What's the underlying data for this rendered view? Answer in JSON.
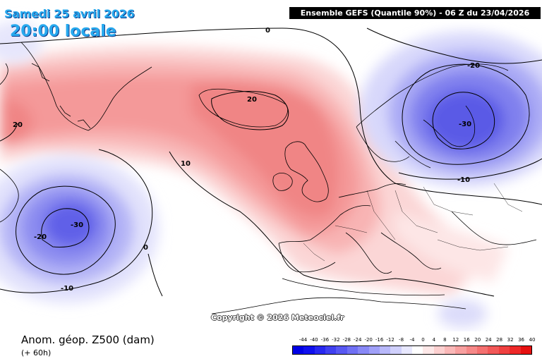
{
  "header": {
    "date": "Samedi 25 avril 2026",
    "local_time": "20:00 locale",
    "model_info": "Ensemble GEFS  (Quantile 90%) - 06 Z du 23/04/2026"
  },
  "copyright": "Copyright © 2026 Meteociel.fr",
  "footer": {
    "variable": "Anom. géop. Z500 (dam)",
    "lead_time": "(+ 60h)"
  },
  "legend": {
    "ticks": [
      "-44",
      "-40",
      "-36",
      "-32",
      "-28",
      "-24",
      "-20",
      "-16",
      "-12",
      "-8",
      "-4",
      "0",
      "4",
      "8",
      "12",
      "16",
      "20",
      "24",
      "28",
      "32",
      "36",
      "40"
    ],
    "colors": [
      "#0000e6",
      "#1010ee",
      "#2828f0",
      "#4040f0",
      "#5858f2",
      "#7070f4",
      "#8888f6",
      "#a0a0f8",
      "#b8b8fa",
      "#d0d0fc",
      "#e8e8fe",
      "#ffffff",
      "#fde8e8",
      "#fcd0d0",
      "#fab8b8",
      "#f8a0a0",
      "#f68888",
      "#f47070",
      "#f25858",
      "#f04040",
      "#ee2828",
      "#e61010"
    ]
  },
  "contour_labels": {
    "top_zero": "0",
    "iceland": "20",
    "greenland_west": "20",
    "atlantic": "10",
    "scandinavia_20": "-20",
    "scandinavia_30": "-30",
    "scandinavia_10": "-10",
    "low_30": "-30",
    "low_20": "-20",
    "low_10": "-10",
    "low_zero": "0"
  }
}
